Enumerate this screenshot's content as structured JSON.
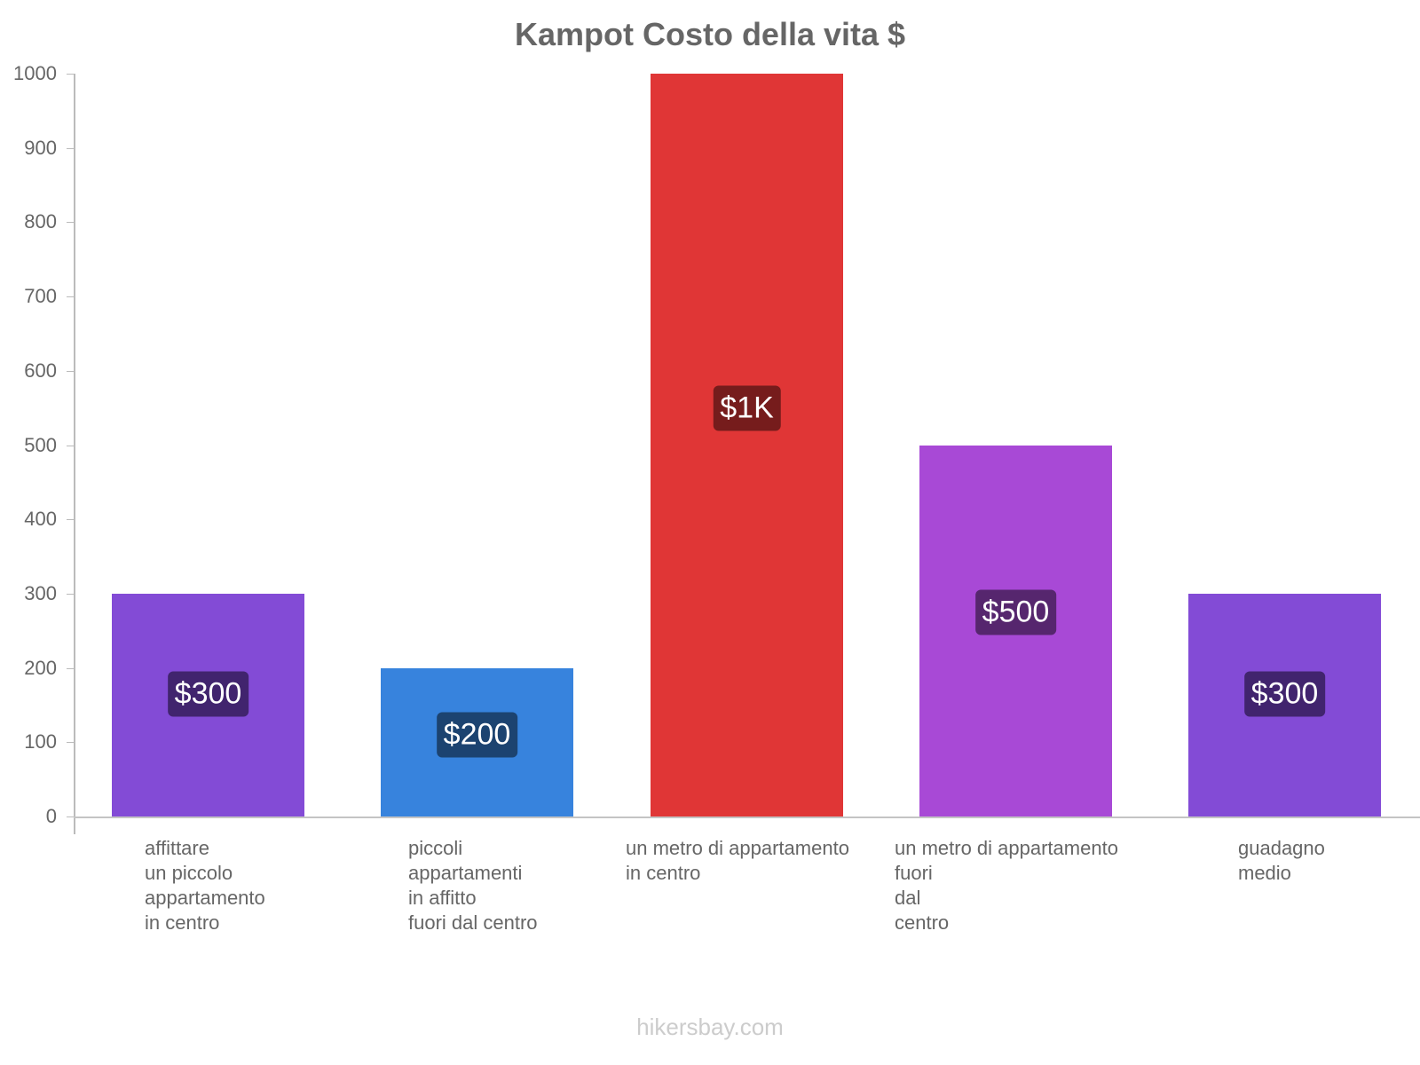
{
  "chart_data": {
    "type": "bar",
    "title": "Kampot Costo della vita $",
    "xlabel": "",
    "ylabel": "",
    "ylim": [
      0,
      1000
    ],
    "yticks": [
      0,
      100,
      200,
      300,
      400,
      500,
      600,
      700,
      800,
      900,
      1000
    ],
    "grid": false,
    "legend": null,
    "categories": [
      "affittare un piccolo appartamento in centro",
      "piccoli appartamenti in affitto fuori dal centro",
      "un metro di appartamento in centro",
      "un metro di appartamento fuori dal centro",
      "guadagno medio"
    ],
    "category_lines": [
      [
        "affittare",
        "un piccolo",
        "appartamento",
        "in centro"
      ],
      [
        "piccoli",
        "appartamenti",
        "in affitto",
        "fuori dal centro"
      ],
      [
        "un metro di appartamento",
        "in centro"
      ],
      [
        "un metro di appartamento",
        "fuori",
        "dal",
        "centro"
      ],
      [
        "guadagno",
        "medio"
      ]
    ],
    "values": [
      300,
      200,
      1000,
      500,
      300
    ],
    "value_labels": [
      "$300",
      "$200",
      "$1K",
      "$500",
      "$300"
    ],
    "bar_colors": [
      "#834bd6",
      "#3783dd",
      "#e03636",
      "#a849d6",
      "#834bd6"
    ],
    "label_bg_colors": [
      "#41246e",
      "#1c4370",
      "#761c1c",
      "#56266e",
      "#41246e"
    ]
  },
  "footer": "hikersbay.com"
}
